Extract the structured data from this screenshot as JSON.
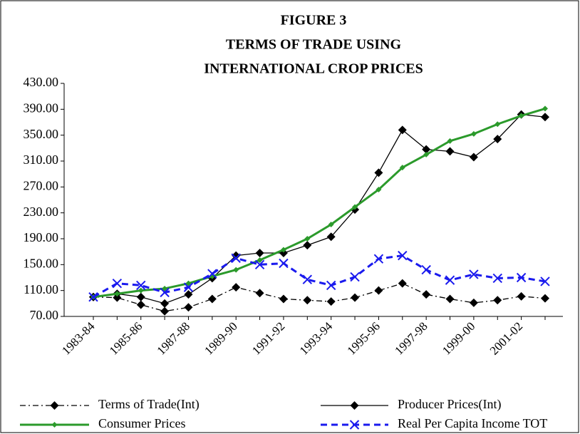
{
  "chart_data": {
    "type": "line",
    "title_lines": [
      "FIGURE 3",
      "TERMS OF TRADE USING",
      "INTERNATIONAL CROP PRICES"
    ],
    "categories": [
      "1983-84",
      null,
      "1985-86",
      null,
      "1987-88",
      null,
      "1989-90",
      null,
      "1991-92",
      null,
      "1993-94",
      null,
      "1995-96",
      null,
      "1997-98",
      null,
      "1999-00",
      null,
      "2001-02",
      null
    ],
    "ylim": [
      70,
      430
    ],
    "yticks": [
      {
        "value": 70,
        "label": "70.00"
      },
      {
        "value": 110,
        "label": "110.00"
      },
      {
        "value": 150,
        "label": "150.00"
      },
      {
        "value": 190,
        "label": "190.00"
      },
      {
        "value": 230,
        "label": "230.00"
      },
      {
        "value": 270,
        "label": "270.00"
      },
      {
        "value": 310,
        "label": "310.00"
      },
      {
        "value": 350,
        "label": "350.00"
      },
      {
        "value": 390,
        "label": "390.00"
      },
      {
        "value": 430,
        "label": "430.00"
      }
    ],
    "grid": false,
    "legend": "bottom",
    "series": [
      {
        "name": "Terms of Trade(Int)",
        "color": "#000000",
        "dash": "dashdot",
        "marker": "diamond",
        "width": 1.3,
        "values": [
          100,
          99,
          88,
          78,
          84,
          97,
          115,
          106,
          97,
          95,
          93,
          99,
          110,
          121,
          104,
          97,
          91,
          95,
          101,
          98
        ]
      },
      {
        "name": "Producer Prices(Int)",
        "color": "#000000",
        "dash": "solid",
        "marker": "diamond",
        "width": 1.3,
        "values": [
          100,
          105,
          100,
          90,
          104,
          129,
          164,
          168,
          168,
          180,
          193,
          235,
          292,
          358,
          328,
          325,
          316,
          344,
          382,
          378
        ]
      },
      {
        "name": "Consumer Prices",
        "color": "#2b9a2b",
        "dash": "solid",
        "marker": "smalldiamond",
        "width": 3,
        "values": [
          100,
          105,
          110,
          113,
          121,
          132,
          142,
          157,
          173,
          190,
          212,
          239,
          266,
          300,
          320,
          341,
          352,
          367,
          380,
          391
        ]
      },
      {
        "name": "Real Per Capita Income TOT",
        "color": "#1a1aee",
        "dash": "dashed",
        "marker": "x",
        "width": 3,
        "values": [
          100,
          121,
          118,
          107,
          115,
          136,
          160,
          150,
          152,
          127,
          118,
          131,
          159,
          164,
          142,
          126,
          135,
          129,
          130,
          124
        ]
      }
    ]
  }
}
